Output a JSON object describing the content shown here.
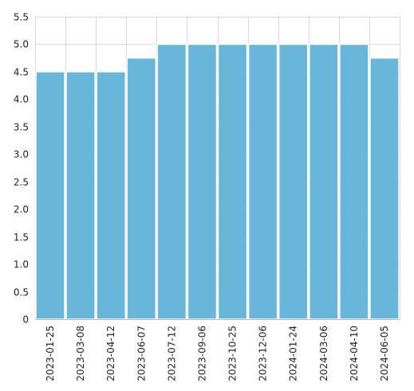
{
  "chart_data": {
    "type": "bar",
    "categories": [
      "2023-01-25",
      "2023-03-08",
      "2023-04-12",
      "2023-06-07",
      "2023-07-12",
      "2023-09-06",
      "2023-10-25",
      "2023-12-06",
      "2024-01-24",
      "2024-03-06",
      "2024-04-10",
      "2024-06-05"
    ],
    "values": [
      4.5,
      4.5,
      4.5,
      4.75,
      5.0,
      5.0,
      5.0,
      5.0,
      5.0,
      5.0,
      5.0,
      4.75
    ],
    "title": "",
    "xlabel": "",
    "ylabel": "",
    "ylim": [
      0,
      5.5
    ],
    "yticks": [
      "0",
      "0.5",
      "1.0",
      "1.5",
      "2.0",
      "2.5",
      "3.0",
      "3.5",
      "4.0",
      "4.5",
      "5.0",
      "5.5"
    ],
    "grid": true,
    "legend": "none",
    "bar_color": "#69b6db"
  }
}
